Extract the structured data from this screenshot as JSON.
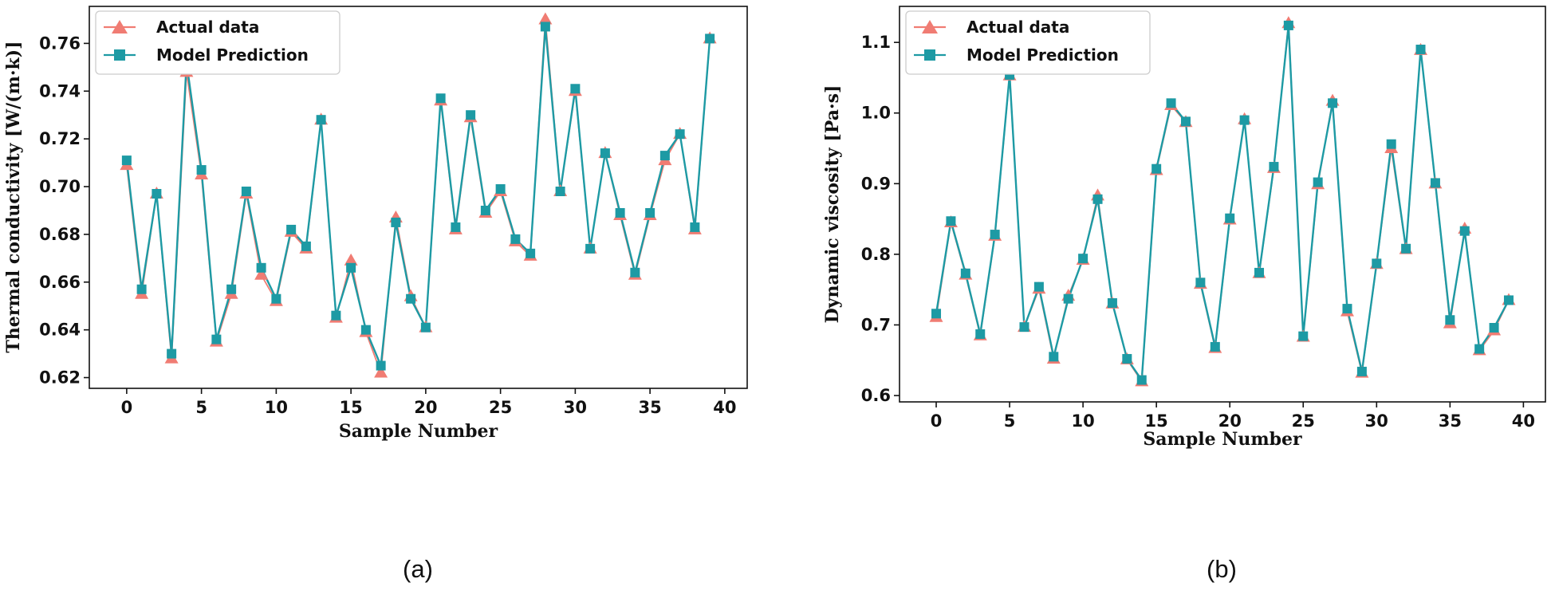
{
  "colors": {
    "actual": "#f07c73",
    "prediction": "#1d9aa4"
  },
  "chart_data": [
    {
      "type": "line",
      "caption": "(a)",
      "xlabel": "Sample Number",
      "ylabel": "Thermal conductivity [W/(m·k)]",
      "xlim": [
        -2.5,
        41.5
      ],
      "ylim": [
        0.6155,
        0.7755
      ],
      "xticks": [
        0,
        5,
        10,
        15,
        20,
        25,
        30,
        35,
        40
      ],
      "xtick_labels": [
        "0",
        "5",
        "10",
        "15",
        "20",
        "25",
        "30",
        "35",
        "40"
      ],
      "yticks": [
        0.62,
        0.64,
        0.66,
        0.68,
        0.7,
        0.72,
        0.74,
        0.76
      ],
      "ytick_labels": [
        "0.62",
        "0.64",
        "0.66",
        "0.68",
        "0.70",
        "0.72",
        "0.74",
        "0.76"
      ],
      "legend_position": "top-left",
      "x": [
        0,
        1,
        2,
        3,
        4,
        5,
        6,
        7,
        8,
        9,
        10,
        11,
        12,
        13,
        14,
        15,
        16,
        17,
        18,
        19,
        20,
        21,
        22,
        23,
        24,
        25,
        26,
        27,
        28,
        29,
        30,
        31,
        32,
        33,
        34,
        35,
        36,
        37,
        38,
        39
      ],
      "series": [
        {
          "name": "Actual data",
          "marker": "triangle",
          "values": [
            0.709,
            0.655,
            0.697,
            0.628,
            0.748,
            0.705,
            0.635,
            0.655,
            0.697,
            0.663,
            0.652,
            0.681,
            0.674,
            0.728,
            0.645,
            0.669,
            0.639,
            0.622,
            0.687,
            0.654,
            0.641,
            0.736,
            0.682,
            0.729,
            0.689,
            0.698,
            0.677,
            0.671,
            0.77,
            0.698,
            0.74,
            0.674,
            0.714,
            0.688,
            0.663,
            0.688,
            0.711,
            0.722,
            0.682,
            0.762
          ]
        },
        {
          "name": "Model Prediction",
          "marker": "square",
          "values": [
            0.711,
            0.657,
            0.697,
            0.63,
            0.752,
            0.707,
            0.636,
            0.657,
            0.698,
            0.666,
            0.653,
            0.682,
            0.675,
            0.728,
            0.646,
            0.666,
            0.64,
            0.625,
            0.685,
            0.653,
            0.641,
            0.737,
            0.683,
            0.73,
            0.69,
            0.699,
            0.678,
            0.672,
            0.767,
            0.698,
            0.741,
            0.674,
            0.714,
            0.689,
            0.664,
            0.689,
            0.713,
            0.722,
            0.683,
            0.762
          ]
        }
      ]
    },
    {
      "type": "line",
      "caption": "(b)",
      "xlabel": "Sample Number",
      "ylabel": "Dynamic viscosity [Pa·s]",
      "xlim": [
        -2.5,
        41.5
      ],
      "ylim": [
        0.591,
        1.151
      ],
      "xticks": [
        0,
        5,
        10,
        15,
        20,
        25,
        30,
        35,
        40
      ],
      "xtick_labels": [
        "0",
        "5",
        "10",
        "15",
        "20",
        "25",
        "30",
        "35",
        "40"
      ],
      "yticks": [
        0.6,
        0.7,
        0.8,
        0.9,
        1.0,
        1.1
      ],
      "ytick_labels": [
        "0.6",
        "0.7",
        "0.8",
        "0.9",
        "1.0",
        "1.1"
      ],
      "legend_position": "top-left",
      "x": [
        0,
        1,
        2,
        3,
        4,
        5,
        6,
        7,
        8,
        9,
        10,
        11,
        12,
        13,
        14,
        15,
        16,
        17,
        18,
        19,
        20,
        21,
        22,
        23,
        24,
        25,
        26,
        27,
        28,
        29,
        30,
        31,
        32,
        33,
        34,
        35,
        36,
        37,
        38,
        39
      ],
      "series": [
        {
          "name": "Actual data",
          "marker": "triangle",
          "values": [
            0.711,
            0.845,
            0.771,
            0.685,
            0.826,
            1.053,
            0.697,
            0.751,
            0.652,
            0.741,
            0.792,
            0.883,
            0.73,
            0.651,
            0.62,
            0.919,
            1.011,
            0.987,
            0.758,
            0.667,
            0.849,
            0.991,
            0.773,
            0.922,
            1.127,
            0.683,
            0.899,
            1.017,
            0.719,
            0.632,
            0.786,
            0.95,
            0.807,
            1.089,
            0.9,
            0.702,
            0.836,
            0.664,
            0.692,
            0.735
          ]
        },
        {
          "name": "Model Prediction",
          "marker": "square",
          "values": [
            0.716,
            0.847,
            0.773,
            0.687,
            0.828,
            1.054,
            0.697,
            0.754,
            0.655,
            0.737,
            0.794,
            0.878,
            0.731,
            0.652,
            0.622,
            0.921,
            1.014,
            0.988,
            0.76,
            0.669,
            0.851,
            0.99,
            0.774,
            0.924,
            1.124,
            0.684,
            0.902,
            1.014,
            0.723,
            0.634,
            0.787,
            0.956,
            0.808,
            1.09,
            0.901,
            0.707,
            0.833,
            0.666,
            0.696,
            0.735
          ]
        }
      ]
    }
  ]
}
